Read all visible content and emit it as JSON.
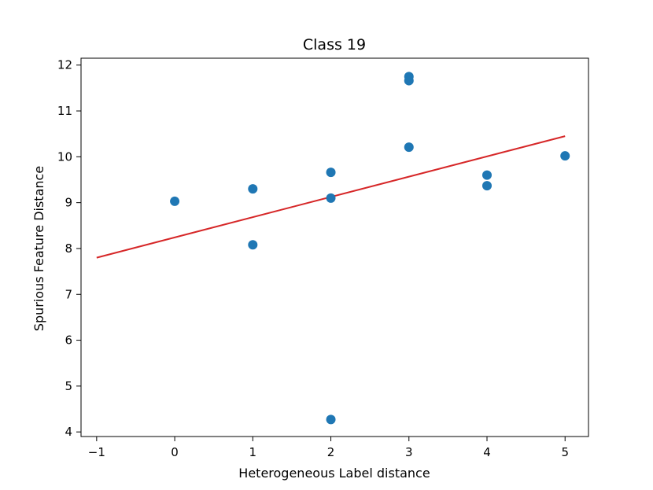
{
  "chart_data": {
    "type": "scatter",
    "title": "Class 19",
    "xlabel": "Heterogeneous Label distance",
    "ylabel": "Spurious Feature Distance",
    "xlim": [
      -1.2,
      5.3
    ],
    "ylim": [
      3.9,
      12.15
    ],
    "xticks": [
      -1,
      0,
      1,
      2,
      3,
      4,
      5
    ],
    "xtick_labels": [
      "−1",
      "0",
      "1",
      "2",
      "3",
      "4",
      "5"
    ],
    "yticks": [
      4,
      5,
      6,
      7,
      8,
      9,
      10,
      11,
      12
    ],
    "ytick_labels": [
      "4",
      "5",
      "6",
      "7",
      "8",
      "9",
      "10",
      "11",
      "12"
    ],
    "grid": false,
    "series": [
      {
        "kind": "points",
        "color": "#1f77b4",
        "points": [
          {
            "x": 0,
            "y": 9.03
          },
          {
            "x": 1,
            "y": 9.3
          },
          {
            "x": 1,
            "y": 8.08
          },
          {
            "x": 2,
            "y": 9.66
          },
          {
            "x": 2,
            "y": 9.1
          },
          {
            "x": 2,
            "y": 4.27
          },
          {
            "x": 3,
            "y": 11.75
          },
          {
            "x": 3,
            "y": 11.66
          },
          {
            "x": 3,
            "y": 10.21
          },
          {
            "x": 4,
            "y": 9.6
          },
          {
            "x": 4,
            "y": 9.37
          },
          {
            "x": 5,
            "y": 10.02
          }
        ]
      },
      {
        "kind": "line",
        "color": "#d62728",
        "points": [
          {
            "x": -1,
            "y": 7.8
          },
          {
            "x": 5,
            "y": 10.45
          }
        ]
      }
    ]
  }
}
